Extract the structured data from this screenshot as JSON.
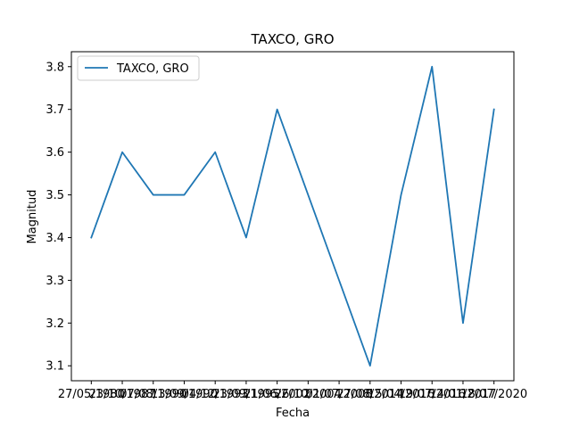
{
  "chart_data": {
    "type": "line",
    "title": "TAXCO, GRO",
    "xlabel": "Fecha",
    "ylabel": "Magnitud",
    "categories": [
      "27/05/1980",
      "23/10/1987",
      "07/08/1990",
      "13/09/1990",
      "04/12/1993",
      "23/09/1995",
      "21/06/2002",
      "26/10/2004",
      "01/07/2008",
      "27/08/2014",
      "15/04/2016",
      "19/07/2016",
      "14/01/2017",
      "18/07/2020"
    ],
    "series": [
      {
        "name": "TAXCO, GRO",
        "values": [
          3.4,
          3.6,
          3.5,
          3.5,
          3.6,
          3.4,
          3.7,
          3.5,
          3.3,
          3.1,
          3.5,
          3.8,
          3.2,
          3.7
        ],
        "color": "#1f77b4"
      }
    ],
    "ylim": [
      3.065,
      3.835
    ],
    "yticks": [
      "3.1",
      "3.2",
      "3.3",
      "3.4",
      "3.5",
      "3.6",
      "3.7",
      "3.8"
    ],
    "grid": false,
    "legend": "upper-left"
  }
}
